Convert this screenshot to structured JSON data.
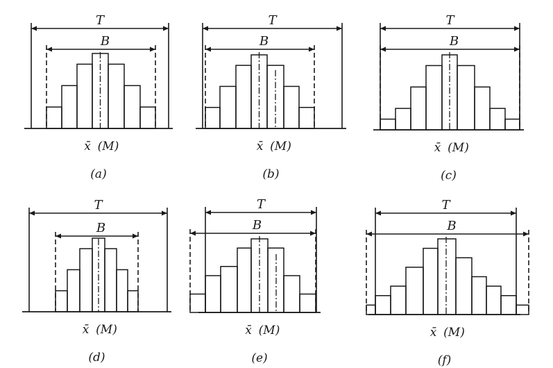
{
  "labels": {
    "tolerance": "T",
    "spread": "B",
    "mean_symbol": "x̄",
    "center_symbol": "(M)"
  },
  "panels": [
    {
      "caption": "(a)",
      "bars": [
        2,
        4,
        6,
        7,
        6,
        4,
        2
      ]
    },
    {
      "caption": "(b)",
      "bars": [
        2,
        4,
        6,
        7,
        6,
        4,
        2
      ]
    },
    {
      "caption": "(c)",
      "bars": [
        1,
        2,
        4,
        6,
        7,
        6,
        4,
        2,
        1
      ]
    },
    {
      "caption": "(d)",
      "bars": [
        2,
        4,
        6,
        7,
        6,
        4,
        2
      ]
    },
    {
      "caption": "(e)",
      "bars": [
        2,
        4,
        5,
        7,
        8,
        7,
        4,
        2
      ]
    },
    {
      "caption": "(f)",
      "bars": [
        1,
        2,
        3,
        5,
        7,
        8,
        6,
        4,
        3,
        2,
        1
      ]
    }
  ],
  "colors": {
    "ink": "#1a1a1a",
    "paper": "#ffffff"
  }
}
